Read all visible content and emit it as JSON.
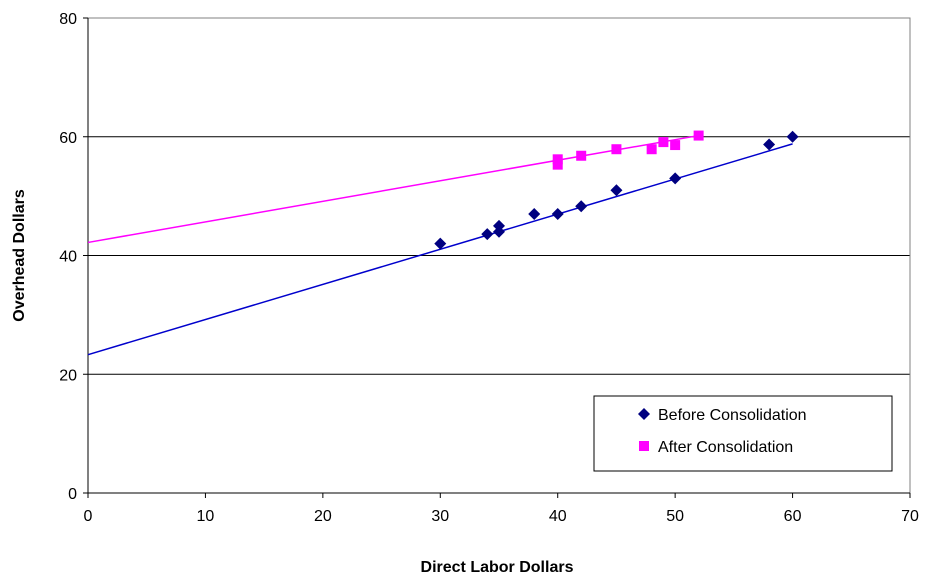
{
  "chart_data": {
    "type": "scatter",
    "title": "",
    "xlabel": "Direct Labor Dollars",
    "ylabel": "Overhead Dollars",
    "xlim": [
      0,
      70
    ],
    "ylim": [
      0,
      80
    ],
    "xticks": [
      0,
      10,
      20,
      30,
      40,
      50,
      60,
      70
    ],
    "yticks": [
      0,
      20,
      40,
      60,
      80
    ],
    "xtick_labels": [
      "0",
      "10",
      "20",
      "30",
      "40",
      "50",
      "60",
      "70"
    ],
    "ytick_labels": [
      "0",
      "20",
      "40",
      "60",
      "80"
    ],
    "grid": "horizontal",
    "legend_position": "bottom-right",
    "series": [
      {
        "name": "Before Consolidation",
        "color": "#000080",
        "marker": "diamond",
        "x": [
          30,
          34,
          35,
          35,
          38,
          40,
          42,
          45,
          50,
          58,
          60
        ],
        "y": [
          42,
          43.6,
          44,
          45,
          47,
          47,
          48.3,
          51,
          53,
          58.7,
          60
        ],
        "trendline": {
          "color": "#0000cc",
          "x": [
            0,
            60
          ],
          "y": [
            23.3,
            58.8
          ]
        }
      },
      {
        "name": "After Consolidation",
        "color": "#ff00ff",
        "marker": "square",
        "x": [
          40,
          40,
          42,
          45,
          48,
          49,
          50,
          52
        ],
        "y": [
          55.3,
          56.2,
          56.8,
          57.9,
          57.9,
          59.1,
          58.6,
          60.2
        ],
        "trendline": {
          "color": "#ff00ff",
          "x": [
            0,
            52
          ],
          "y": [
            42.2,
            60.2
          ]
        }
      }
    ]
  }
}
